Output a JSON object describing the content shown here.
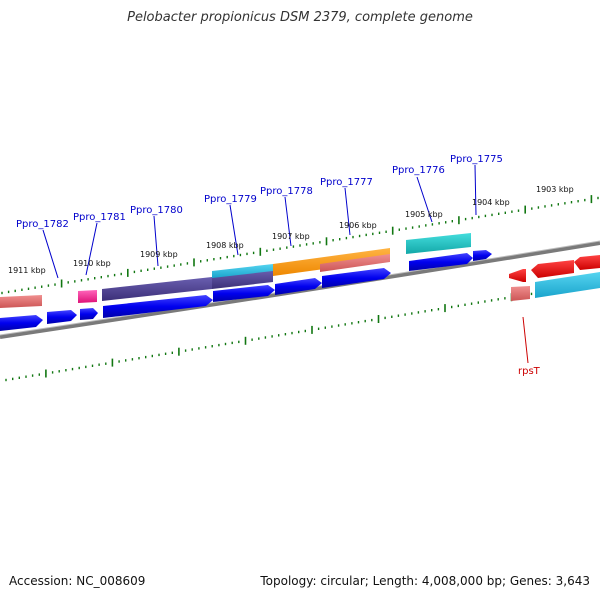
{
  "title": "Pelobacter propionicus DSM 2379, complete genome",
  "footer": {
    "accession": "Accession: NC_008609",
    "summary": "Topology: circular; Length: 4,008,000 bp; Genes: 3,643"
  },
  "kbp_ticks": [
    "1911 kbp",
    "1910 kbp",
    "1909 kbp",
    "1908 kbp",
    "1907 kbp",
    "1906 kbp",
    "1905 kbp",
    "1904 kbp",
    "1903 kbp"
  ],
  "gene_labels": [
    {
      "text": "Ppro_1782",
      "color": "#0000cc"
    },
    {
      "text": "Ppro_1781",
      "color": "#0000cc"
    },
    {
      "text": "Ppro_1780",
      "color": "#0000cc"
    },
    {
      "text": "Ppro_1779",
      "color": "#0000cc"
    },
    {
      "text": "Ppro_1778",
      "color": "#0000cc"
    },
    {
      "text": "Ppro_1777",
      "color": "#0000cc"
    },
    {
      "text": "Ppro_1776",
      "color": "#0000cc"
    },
    {
      "text": "Ppro_1775",
      "color": "#0000cc"
    },
    {
      "text": "rpsT",
      "color": "#cc0000"
    }
  ],
  "colors": {
    "cds": "#0000ee",
    "backbone": "#808080",
    "tick": "#117711",
    "feature_purple": "#4a3f88",
    "feature_cyan": "#22b7dd",
    "feature_orange": "#ff9900",
    "feature_teal": "#1cc4c4",
    "feature_pink": "#ff3399",
    "feature_salmon": "#ee7777",
    "feature_red": "#ee0000"
  }
}
